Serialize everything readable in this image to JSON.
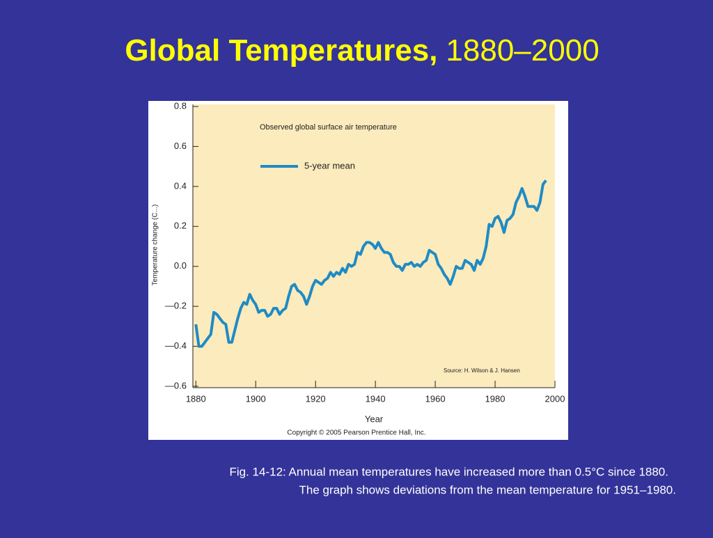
{
  "slide": {
    "title": "Global Temperatures,",
    "title_years": "1880–2000",
    "caption": [
      "Fig. 14-12: Annual mean temperatures have increased more than 0.5°C since 1880.",
      "The graph shows deviations from the mean temperature for 1951–1980."
    ]
  },
  "chart_data": {
    "type": "line",
    "subtitle": "Observed global surface air temperature",
    "xlabel": "Year",
    "ylabel": "Temperature change (C...)",
    "source": "Source: H. Wilson & J. Hansen",
    "copyright": "Copyright © 2005 Pearson Prentice Hall, Inc.",
    "x": [
      1880,
      1881,
      1882,
      1883,
      1884,
      1885,
      1886,
      1887,
      1888,
      1889,
      1890,
      1891,
      1892,
      1893,
      1894,
      1895,
      1896,
      1897,
      1898,
      1899,
      1900,
      1901,
      1902,
      1903,
      1904,
      1905,
      1906,
      1907,
      1908,
      1909,
      1910,
      1911,
      1912,
      1913,
      1914,
      1915,
      1916,
      1917,
      1918,
      1919,
      1920,
      1921,
      1922,
      1923,
      1924,
      1925,
      1926,
      1927,
      1928,
      1929,
      1930,
      1931,
      1932,
      1933,
      1934,
      1935,
      1936,
      1937,
      1938,
      1939,
      1940,
      1941,
      1942,
      1943,
      1944,
      1945,
      1946,
      1947,
      1948,
      1949,
      1950,
      1951,
      1952,
      1953,
      1954,
      1955,
      1956,
      1957,
      1958,
      1959,
      1960,
      1961,
      1962,
      1963,
      1964,
      1965,
      1966,
      1967,
      1968,
      1969,
      1970,
      1971,
      1972,
      1973,
      1974,
      1975,
      1976,
      1977,
      1978,
      1979,
      1980,
      1981,
      1982,
      1983,
      1984,
      1985,
      1986,
      1987,
      1988,
      1989,
      1990,
      1991,
      1992,
      1993,
      1994,
      1995,
      1996,
      1997
    ],
    "series": [
      {
        "name": "5-year mean",
        "color": "#1f8bc4",
        "values": [
          -0.29,
          -0.4,
          -0.4,
          -0.38,
          -0.36,
          -0.34,
          -0.23,
          -0.24,
          -0.26,
          -0.28,
          -0.29,
          -0.38,
          -0.38,
          -0.32,
          -0.26,
          -0.21,
          -0.18,
          -0.19,
          -0.14,
          -0.17,
          -0.19,
          -0.23,
          -0.22,
          -0.22,
          -0.25,
          -0.24,
          -0.21,
          -0.21,
          -0.24,
          -0.22,
          -0.21,
          -0.15,
          -0.1,
          -0.09,
          -0.12,
          -0.13,
          -0.15,
          -0.19,
          -0.15,
          -0.1,
          -0.07,
          -0.08,
          -0.09,
          -0.07,
          -0.06,
          -0.03,
          -0.05,
          -0.03,
          -0.04,
          -0.01,
          -0.03,
          0.01,
          0.0,
          0.01,
          0.07,
          0.06,
          0.1,
          0.12,
          0.12,
          0.11,
          0.09,
          0.12,
          0.09,
          0.07,
          0.07,
          0.06,
          0.02,
          0.0,
          0.0,
          -0.02,
          0.01,
          0.01,
          0.02,
          0.0,
          0.01,
          0.0,
          0.02,
          0.03,
          0.08,
          0.07,
          0.06,
          0.01,
          -0.01,
          -0.04,
          -0.06,
          -0.09,
          -0.05,
          0.0,
          -0.01,
          -0.01,
          0.03,
          0.02,
          0.01,
          -0.02,
          0.03,
          0.01,
          0.04,
          0.1,
          0.21,
          0.2,
          0.24,
          0.25,
          0.22,
          0.17,
          0.23,
          0.24,
          0.26,
          0.32,
          0.35,
          0.39,
          0.35,
          0.3,
          0.3,
          0.3,
          0.28,
          0.32,
          0.41,
          0.43
        ]
      }
    ],
    "xlim": [
      1879,
      2000
    ],
    "xticks": [
      1880,
      1900,
      1920,
      1940,
      1960,
      1980,
      2000
    ],
    "ylim": [
      -0.6,
      0.8
    ],
    "yticks": [
      {
        "value": -0.6,
        "label": "—0.6"
      },
      {
        "value": -0.4,
        "label": "—0.4"
      },
      {
        "value": -0.2,
        "label": "—0.2"
      },
      {
        "value": 0,
        "label": "0.0"
      },
      0.2,
      0.4,
      0.6,
      0.8
    ],
    "grid": false,
    "legend": "upper left"
  }
}
